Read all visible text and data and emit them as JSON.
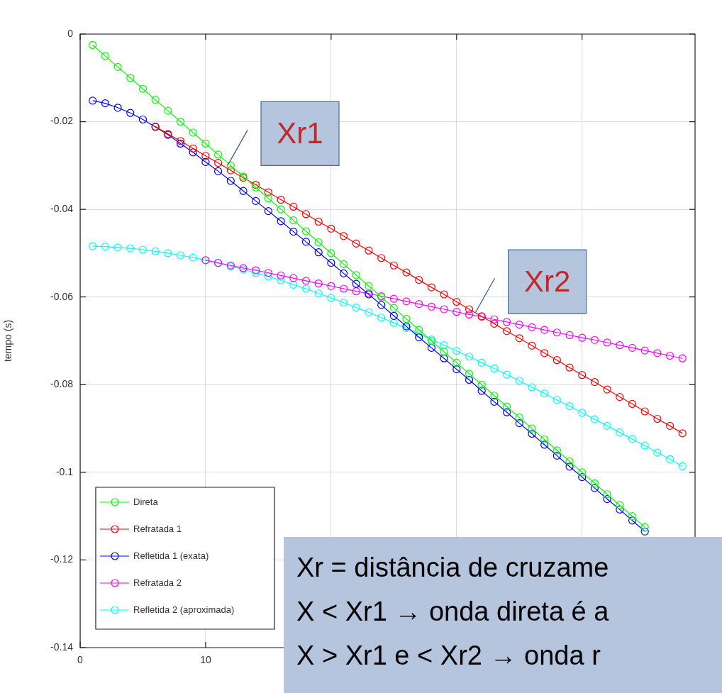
{
  "chart_data": {
    "type": "line",
    "ylabel": "tempo (s)",
    "xlim": [
      0,
      49
    ],
    "ylim": [
      -0.14,
      0
    ],
    "xticks": [
      0,
      10,
      {
        "value": 20,
        "label": null
      },
      {
        "value": 30,
        "label": null
      },
      {
        "value": 40,
        "label": null
      }
    ],
    "yticks": [
      0,
      -0.02,
      -0.04,
      -0.06,
      -0.08,
      -0.1,
      -0.12,
      -0.14
    ],
    "grid": true,
    "legend": "bottom left",
    "marker": "circle",
    "line_style": "solid",
    "series": [
      {
        "name": "Direta",
        "color": "#00ff00",
        "x": [
          1,
          2,
          3,
          4,
          5,
          6,
          7,
          8,
          9,
          10,
          11,
          12,
          13,
          14,
          15,
          16,
          17,
          18,
          19,
          20,
          21,
          22,
          23,
          24,
          25,
          26,
          27,
          28,
          29,
          30,
          31,
          32,
          33,
          34,
          35,
          36,
          37,
          38,
          39,
          40,
          41,
          42,
          43,
          44,
          45
        ],
        "values": [
          -0.0025,
          -0.005,
          -0.0075,
          -0.01,
          -0.0125,
          -0.015,
          -0.0175,
          -0.02,
          -0.0225,
          -0.025,
          -0.0275,
          -0.03,
          -0.0325,
          -0.035,
          -0.0375,
          -0.04,
          -0.0425,
          -0.045,
          -0.0475,
          -0.05,
          -0.0525,
          -0.055,
          -0.0575,
          -0.06,
          -0.0625,
          -0.065,
          -0.0675,
          -0.07,
          -0.0725,
          -0.075,
          -0.0775,
          -0.08,
          -0.0825,
          -0.085,
          -0.0875,
          -0.09,
          -0.0925,
          -0.095,
          -0.0975,
          -0.1,
          -0.1025,
          -0.105,
          -0.1075,
          -0.11,
          -0.1125
        ]
      },
      {
        "name": "Refratada 1",
        "color": "#ff0000",
        "x": [
          6,
          7,
          8,
          9,
          10,
          11,
          12,
          13,
          14,
          15,
          16,
          17,
          18,
          19,
          20,
          21,
          22,
          23,
          24,
          25,
          26,
          27,
          28,
          29,
          30,
          31,
          32,
          33,
          34,
          35,
          36,
          37,
          38,
          39,
          40,
          41,
          42,
          43,
          44,
          45,
          46,
          47,
          48
        ],
        "values": [
          -0.0211,
          -0.0228,
          -0.0244,
          -0.0261,
          -0.0278,
          -0.0294,
          -0.0311,
          -0.0328,
          -0.0344,
          -0.0361,
          -0.0378,
          -0.0394,
          -0.0411,
          -0.0428,
          -0.0444,
          -0.0461,
          -0.0478,
          -0.0494,
          -0.0511,
          -0.0528,
          -0.0544,
          -0.0561,
          -0.0578,
          -0.0594,
          -0.0611,
          -0.0628,
          -0.0644,
          -0.0661,
          -0.0678,
          -0.0694,
          -0.0711,
          -0.0728,
          -0.0744,
          -0.0761,
          -0.0778,
          -0.0794,
          -0.0811,
          -0.0828,
          -0.0844,
          -0.0861,
          -0.0878,
          -0.0894,
          -0.0911
        ]
      },
      {
        "name": "Refletida 1 (exata)",
        "color": "#0000ff",
        "x": [
          1,
          2,
          3,
          4,
          5,
          6,
          7,
          8,
          9,
          10,
          11,
          12,
          13,
          14,
          15,
          16,
          17,
          18,
          19,
          20,
          21,
          22,
          23,
          24,
          25,
          26,
          27,
          28,
          29,
          30,
          31,
          32,
          33,
          34,
          35,
          36,
          37,
          38,
          39,
          40,
          41,
          42,
          43,
          44,
          45
        ],
        "values": [
          -0.0152,
          -0.0158,
          -0.0168,
          -0.018,
          -0.0195,
          -0.0212,
          -0.023,
          -0.025,
          -0.027,
          -0.0292,
          -0.0313,
          -0.0335,
          -0.0358,
          -0.0381,
          -0.0404,
          -0.0427,
          -0.0451,
          -0.0474,
          -0.0498,
          -0.0522,
          -0.0546,
          -0.057,
          -0.0594,
          -0.0618,
          -0.0643,
          -0.0667,
          -0.0692,
          -0.0716,
          -0.074,
          -0.0765,
          -0.0789,
          -0.0814,
          -0.0839,
          -0.0863,
          -0.0888,
          -0.0912,
          -0.0937,
          -0.0962,
          -0.0987,
          -0.1011,
          -0.1036,
          -0.1061,
          -0.1085,
          -0.111,
          -0.1135
        ]
      },
      {
        "name": "Refratada 2",
        "color": "#ff00ff",
        "x": [
          10,
          11,
          12,
          13,
          14,
          15,
          16,
          17,
          18,
          19,
          20,
          21,
          22,
          23,
          24,
          25,
          26,
          27,
          28,
          29,
          30,
          31,
          32,
          33,
          34,
          35,
          36,
          37,
          38,
          39,
          40,
          41,
          42,
          43,
          44,
          45,
          46,
          47,
          48
        ],
        "values": [
          -0.0516,
          -0.0522,
          -0.0528,
          -0.0534,
          -0.0539,
          -0.0545,
          -0.0551,
          -0.0557,
          -0.0563,
          -0.0569,
          -0.0575,
          -0.0581,
          -0.0587,
          -0.0592,
          -0.0598,
          -0.0604,
          -0.061,
          -0.0616,
          -0.0622,
          -0.0628,
          -0.0634,
          -0.064,
          -0.0645,
          -0.0651,
          -0.0657,
          -0.0663,
          -0.0669,
          -0.0675,
          -0.0681,
          -0.0687,
          -0.0693,
          -0.0698,
          -0.0704,
          -0.071,
          -0.0716,
          -0.0722,
          -0.0728,
          -0.0734,
          -0.074
        ]
      },
      {
        "name": "Refletida 2 (aproximada)",
        "color": "#00ffff",
        "x": [
          1,
          2,
          3,
          4,
          5,
          6,
          7,
          8,
          9,
          10,
          11,
          12,
          13,
          14,
          15,
          16,
          17,
          18,
          19,
          20,
          21,
          22,
          23,
          24,
          25,
          26,
          27,
          28,
          29,
          30,
          31,
          32,
          33,
          34,
          35,
          36,
          37,
          38,
          39,
          40,
          41,
          42,
          43,
          44,
          45,
          46,
          47,
          48
        ],
        "values": [
          -0.0484,
          -0.0485,
          -0.0487,
          -0.0489,
          -0.0492,
          -0.0496,
          -0.05,
          -0.0505,
          -0.051,
          -0.0516,
          -0.0523,
          -0.053,
          -0.0537,
          -0.0545,
          -0.0553,
          -0.0562,
          -0.0572,
          -0.0581,
          -0.0592,
          -0.0602,
          -0.0613,
          -0.0624,
          -0.0635,
          -0.0647,
          -0.0659,
          -0.0671,
          -0.0684,
          -0.0697,
          -0.071,
          -0.0723,
          -0.0736,
          -0.075,
          -0.0763,
          -0.0777,
          -0.0791,
          -0.0806,
          -0.082,
          -0.0835,
          -0.0849,
          -0.0864,
          -0.0879,
          -0.0894,
          -0.0909,
          -0.0924,
          -0.0939,
          -0.0955,
          -0.097,
          -0.0986
        ]
      }
    ],
    "annotations": [
      {
        "text": "Xr1",
        "x": 11.7,
        "y": -0.03
      },
      {
        "text": "Xr2",
        "x": 31.4,
        "y": -0.0638
      },
      "Xr = distância de cruzame",
      "X < Xr1 → onda direta é a",
      "X > Xr1 e < Xr2 → onda r"
    ]
  }
}
